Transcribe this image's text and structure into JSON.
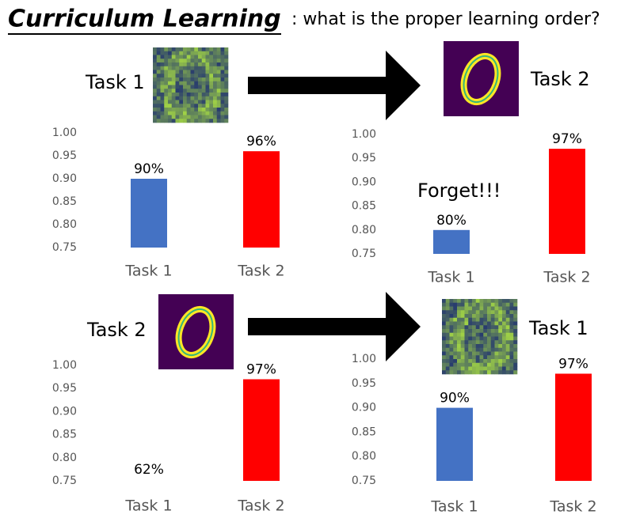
{
  "title": "Curriculum Learning",
  "subtitle": ": what is the proper learning order?",
  "task_labels": [
    "Task 1",
    "Task 2",
    "Task 2",
    "Task 1"
  ],
  "chart_data": [
    {
      "type": "bar",
      "categories": [
        "Task 1",
        "Task 2"
      ],
      "values": [
        0.9,
        0.96
      ],
      "value_labels": [
        "90%",
        "96%"
      ],
      "colors": [
        "#4472c4",
        "#ff0000"
      ],
      "ylim": [
        0.75,
        1.0
      ],
      "yticks": [
        {
          "value": 0.75,
          "label": "0.75"
        },
        {
          "value": 0.8,
          "label": "0.80"
        },
        {
          "value": 0.85,
          "label": "0.85"
        },
        {
          "value": 0.9,
          "label": "0.90"
        },
        {
          "value": 0.95,
          "label": "0.95"
        },
        {
          "value": 1,
          "label": "1.00"
        }
      ]
    },
    {
      "type": "bar",
      "categories": [
        "Task 1",
        "Task 2"
      ],
      "values": [
        0.8,
        0.97
      ],
      "value_labels": [
        "80%",
        "97%"
      ],
      "colors": [
        "#4472c4",
        "#ff0000"
      ],
      "annotation": "Forget!!!",
      "ylim": [
        0.75,
        1.0
      ],
      "yticks": [
        {
          "value": 0.75,
          "label": "0.75"
        },
        {
          "value": 0.8,
          "label": "0.80"
        },
        {
          "value": 0.85,
          "label": "0.85"
        },
        {
          "value": 0.9,
          "label": "0.90"
        },
        {
          "value": 0.95,
          "label": "0.95"
        },
        {
          "value": 1,
          "label": "1.00"
        }
      ]
    },
    {
      "type": "bar",
      "categories": [
        "Task 1",
        "Task 2"
      ],
      "values": [
        0.62,
        0.97
      ],
      "value_labels": [
        "62%",
        "97%"
      ],
      "colors": [
        "#4472c4",
        "#ff0000"
      ],
      "ylim": [
        0.75,
        1.0
      ],
      "yticks": [
        {
          "value": 0.75,
          "label": "0.75"
        },
        {
          "value": 0.8,
          "label": "0.80"
        },
        {
          "value": 0.85,
          "label": "0.85"
        },
        {
          "value": 0.9,
          "label": "0.90"
        },
        {
          "value": 0.95,
          "label": "0.95"
        },
        {
          "value": 1,
          "label": "1.00"
        }
      ]
    },
    {
      "type": "bar",
      "categories": [
        "Task 1",
        "Task 2"
      ],
      "values": [
        0.9,
        0.97
      ],
      "value_labels": [
        "90%",
        "97%"
      ],
      "colors": [
        "#4472c4",
        "#ff0000"
      ],
      "ylim": [
        0.75,
        1.0
      ],
      "yticks": [
        {
          "value": 0.75,
          "label": "0.75"
        },
        {
          "value": 0.8,
          "label": "0.80"
        },
        {
          "value": 0.85,
          "label": "0.85"
        },
        {
          "value": 0.9,
          "label": "0.90"
        },
        {
          "value": 0.95,
          "label": "0.95"
        },
        {
          "value": 1,
          "label": "1.00"
        }
      ]
    }
  ]
}
